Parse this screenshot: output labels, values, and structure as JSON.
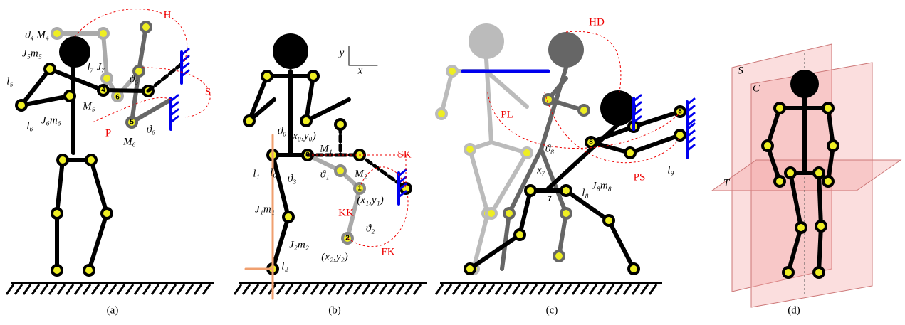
{
  "panels": [
    {
      "caption": "(a)",
      "labels": [
        "ϑ₄ M₄",
        "H",
        "J₅m₅",
        "l₅",
        "l₇ J₇",
        "ϑ₅",
        "S",
        "M₅",
        "l₆",
        "J₆m₆",
        "P",
        "ϑ₆",
        "M₆",
        "4",
        "5",
        "6"
      ]
    },
    {
      "caption": "(b)",
      "labels": [
        "y",
        "x",
        "ϑ₀",
        "(x₀,y₀)",
        "M₁",
        "l₀",
        "ϑ₁",
        "ϑ₃",
        "SK",
        "M₂",
        "(x₁,y₁)",
        "l₁",
        "J₁m₁",
        "KK",
        "ϑ₂",
        "FK",
        "J₂m₂",
        "(x₂,y₂)",
        "l₂",
        "0",
        "1",
        "2"
      ]
    },
    {
      "caption": "(c)",
      "labels": [
        "HD",
        "PL",
        "ϑ₈",
        "x₇",
        "7",
        "l₈",
        "J₈m₈",
        "PS",
        "l₉",
        "8",
        "8"
      ]
    },
    {
      "caption": "(d)",
      "labels": [
        "S",
        "C",
        "T"
      ]
    }
  ]
}
